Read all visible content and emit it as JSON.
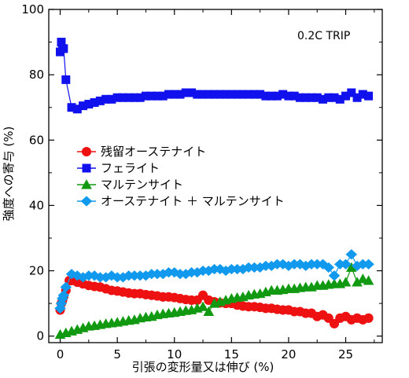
{
  "chart_data": {
    "type": "scatter",
    "annotation": "0.2C TRIP",
    "xlabel": "引張の変形量又は伸び (%)",
    "ylabel": "強度への寄与 (%)",
    "xlim": [
      -1,
      28.2
    ],
    "ylim": [
      -2,
      100
    ],
    "xticks": [
      "0",
      "5",
      "10",
      "15",
      "20",
      "25"
    ],
    "yticks": [
      "0",
      "20",
      "40",
      "60",
      "80",
      "100"
    ],
    "grid": false,
    "legend_position": "middle-left",
    "series": [
      {
        "name": "残留オーステナイト",
        "color": "#ee1111",
        "marker": "circle",
        "line": true,
        "points": [
          [
            0,
            8
          ],
          [
            0.1,
            10
          ],
          [
            0.2,
            11
          ],
          [
            0.3,
            12
          ],
          [
            0.5,
            14
          ],
          [
            0.8,
            17
          ],
          [
            1.0,
            17
          ],
          [
            1.5,
            16.5
          ],
          [
            2,
            16
          ],
          [
            2.5,
            15.5
          ],
          [
            3,
            15.2
          ],
          [
            3.5,
            15
          ],
          [
            4,
            14.5
          ],
          [
            4.5,
            14
          ],
          [
            5,
            13.8
          ],
          [
            5.5,
            13.5
          ],
          [
            6,
            13.2
          ],
          [
            6.5,
            13
          ],
          [
            7,
            13
          ],
          [
            7.5,
            12.7
          ],
          [
            8,
            12.5
          ],
          [
            8.5,
            12.3
          ],
          [
            9,
            12
          ],
          [
            9.5,
            12
          ],
          [
            10,
            11.8
          ],
          [
            10.5,
            11.5
          ],
          [
            11,
            11.2
          ],
          [
            11.5,
            11
          ],
          [
            12,
            11
          ],
          [
            12.5,
            12.5
          ],
          [
            13,
            11
          ],
          [
            13.5,
            10.5
          ],
          [
            14,
            10.2
          ],
          [
            14.5,
            10
          ],
          [
            15,
            10
          ],
          [
            15.5,
            9.5
          ],
          [
            16,
            9.2
          ],
          [
            16.5,
            9
          ],
          [
            17,
            9
          ],
          [
            17.5,
            8.8
          ],
          [
            18,
            8.5
          ],
          [
            18.5,
            8.5
          ],
          [
            19,
            8.2
          ],
          [
            19.5,
            8
          ],
          [
            20,
            8
          ],
          [
            20.5,
            7.5
          ],
          [
            21,
            7.5
          ],
          [
            21.5,
            7
          ],
          [
            22,
            7
          ],
          [
            22.5,
            6
          ],
          [
            23,
            6.5
          ],
          [
            23.5,
            5.5
          ],
          [
            24,
            3.8
          ],
          [
            24.5,
            5.5
          ],
          [
            25,
            6
          ],
          [
            25.5,
            5
          ],
          [
            26,
            5.5
          ],
          [
            26.5,
            5
          ],
          [
            27,
            5.5
          ]
        ]
      },
      {
        "name": "フェライト",
        "color": "#1111ee",
        "marker": "square",
        "line": true,
        "points": [
          [
            0,
            87
          ],
          [
            0.1,
            90
          ],
          [
            0.2,
            88
          ],
          [
            0.3,
            88
          ],
          [
            0.5,
            78.5
          ],
          [
            1.0,
            70
          ],
          [
            1.5,
            69.5
          ],
          [
            2,
            70.5
          ],
          [
            2.5,
            71
          ],
          [
            3,
            71.5
          ],
          [
            3.5,
            72
          ],
          [
            4,
            72.5
          ],
          [
            4.5,
            72.5
          ],
          [
            5,
            73
          ],
          [
            5.5,
            73
          ],
          [
            6,
            73
          ],
          [
            6.5,
            73
          ],
          [
            7,
            73
          ],
          [
            7.5,
            73.5
          ],
          [
            8,
            73.5
          ],
          [
            8.5,
            73.5
          ],
          [
            9,
            73.5
          ],
          [
            9.5,
            74
          ],
          [
            10,
            74
          ],
          [
            10.5,
            74
          ],
          [
            11,
            74.5
          ],
          [
            11.5,
            74.5
          ],
          [
            12,
            74
          ],
          [
            12.5,
            74
          ],
          [
            13,
            74
          ],
          [
            13.5,
            74
          ],
          [
            14,
            74
          ],
          [
            14.5,
            74
          ],
          [
            15,
            74
          ],
          [
            15.5,
            74
          ],
          [
            16,
            74
          ],
          [
            16.5,
            74
          ],
          [
            17,
            74
          ],
          [
            17.5,
            74
          ],
          [
            18,
            73.5
          ],
          [
            18.5,
            73.5
          ],
          [
            19,
            73.5
          ],
          [
            19.5,
            74
          ],
          [
            20,
            73.5
          ],
          [
            20.5,
            73.5
          ],
          [
            21,
            73
          ],
          [
            21.5,
            73
          ],
          [
            22,
            73
          ],
          [
            22.5,
            73
          ],
          [
            23,
            72.5
          ],
          [
            23.5,
            73
          ],
          [
            24,
            73
          ],
          [
            24.5,
            72.5
          ],
          [
            25,
            73.5
          ],
          [
            25.5,
            74.5
          ],
          [
            26,
            73
          ],
          [
            26.5,
            74
          ],
          [
            27,
            73.5
          ]
        ]
      },
      {
        "name": "マルテンサイト",
        "color": "#119911",
        "marker": "triangle",
        "line": true,
        "points": [
          [
            0,
            0.5
          ],
          [
            0.5,
            1
          ],
          [
            1,
            1.5
          ],
          [
            1.5,
            2
          ],
          [
            2,
            2.5
          ],
          [
            2.5,
            3
          ],
          [
            3,
            3.2
          ],
          [
            3.5,
            3.5
          ],
          [
            4,
            3.8
          ],
          [
            4.5,
            4
          ],
          [
            5,
            4.2
          ],
          [
            5.5,
            4.5
          ],
          [
            6,
            4.8
          ],
          [
            6.5,
            5
          ],
          [
            7,
            5.5
          ],
          [
            7.5,
            5.8
          ],
          [
            8,
            6
          ],
          [
            8.5,
            6.5
          ],
          [
            9,
            6.8
          ],
          [
            9.5,
            7
          ],
          [
            10,
            7.2
          ],
          [
            10.5,
            7.5
          ],
          [
            11,
            7.8
          ],
          [
            11.5,
            8
          ],
          [
            12,
            8.5
          ],
          [
            12.5,
            9
          ],
          [
            13,
            7.5
          ],
          [
            13.5,
            10
          ],
          [
            14,
            10.5
          ],
          [
            14.5,
            11
          ],
          [
            15,
            11.5
          ],
          [
            15.5,
            11.8
          ],
          [
            16,
            12
          ],
          [
            16.5,
            12.5
          ],
          [
            17,
            12.8
          ],
          [
            17.5,
            13
          ],
          [
            18,
            13.5
          ],
          [
            18.5,
            14
          ],
          [
            19,
            14
          ],
          [
            19.5,
            14.2
          ],
          [
            20,
            14.5
          ],
          [
            20.5,
            14.5
          ],
          [
            21,
            14.8
          ],
          [
            21.5,
            15
          ],
          [
            22,
            15
          ],
          [
            22.5,
            15.5
          ],
          [
            23,
            15.5
          ],
          [
            23.5,
            15.8
          ],
          [
            24,
            16
          ],
          [
            24.5,
            16
          ],
          [
            25,
            16.5
          ],
          [
            25.5,
            21
          ],
          [
            26,
            16.5
          ],
          [
            26.5,
            17.5
          ],
          [
            27,
            17
          ]
        ]
      },
      {
        "name": "オーステナイト ＋ マルテンサイト",
        "color": "#1199ee",
        "marker": "diamond",
        "line": true,
        "points": [
          [
            0,
            8.5
          ],
          [
            0.1,
            10
          ],
          [
            0.2,
            11.5
          ],
          [
            0.3,
            12.5
          ],
          [
            0.5,
            15
          ],
          [
            1.0,
            19
          ],
          [
            1.5,
            18.5
          ],
          [
            2,
            18
          ],
          [
            2.5,
            18.5
          ],
          [
            3,
            18.5
          ],
          [
            3.5,
            18
          ],
          [
            4,
            18
          ],
          [
            4.5,
            18.5
          ],
          [
            5,
            18
          ],
          [
            5.5,
            18
          ],
          [
            6,
            18.5
          ],
          [
            6.5,
            18.5
          ],
          [
            7,
            18.5
          ],
          [
            7.5,
            18.5
          ],
          [
            8,
            19
          ],
          [
            8.5,
            19
          ],
          [
            9,
            19
          ],
          [
            9.5,
            19.5
          ],
          [
            10,
            19.5
          ],
          [
            10.5,
            19
          ],
          [
            11,
            19
          ],
          [
            11.5,
            19.5
          ],
          [
            12,
            19.5
          ],
          [
            12.5,
            20
          ],
          [
            13,
            20
          ],
          [
            13.5,
            20.5
          ],
          [
            14,
            20.5
          ],
          [
            14.5,
            20
          ],
          [
            15,
            20.5
          ],
          [
            15.5,
            20.5
          ],
          [
            16,
            20.5
          ],
          [
            16.5,
            21
          ],
          [
            17,
            21
          ],
          [
            17.5,
            21
          ],
          [
            18,
            21.5
          ],
          [
            18.5,
            21.5
          ],
          [
            19,
            22
          ],
          [
            19.5,
            22
          ],
          [
            20,
            21.5
          ],
          [
            20.5,
            22
          ],
          [
            21,
            22
          ],
          [
            21.5,
            21.5
          ],
          [
            22,
            22
          ],
          [
            22.5,
            22
          ],
          [
            23,
            22
          ],
          [
            23.5,
            21
          ],
          [
            24,
            18.5
          ],
          [
            24.5,
            22
          ],
          [
            25,
            22
          ],
          [
            25.5,
            25
          ],
          [
            26,
            21.5
          ],
          [
            26.5,
            22
          ],
          [
            27,
            22
          ]
        ]
      }
    ]
  }
}
